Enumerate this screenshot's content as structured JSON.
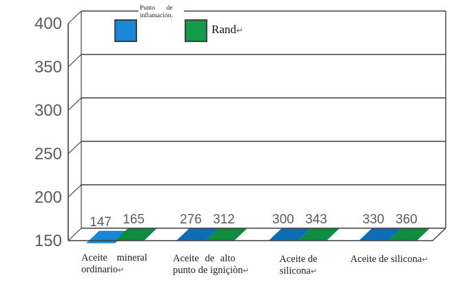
{
  "chart_data": {
    "type": "bar",
    "title": "",
    "xlabel": "",
    "ylabel": "",
    "ylim": [
      150,
      400
    ],
    "yticks": [
      150,
      200,
      250,
      300,
      350,
      400
    ],
    "grid": "horizontal",
    "legend_position": "top-center",
    "projection": "3d",
    "categories": [
      {
        "lines": [
          "Aceite mineral",
          "ordinario↵"
        ]
      },
      {
        "lines": [
          "Aceite de alto",
          "punto de igniçiòn↵"
        ]
      },
      {
        "lines": [
          "Aceite de",
          "silicona↵"
        ]
      },
      {
        "lines": [
          "Aceite de silicona↵"
        ]
      }
    ],
    "series": [
      {
        "name": "Punto de inflamación.",
        "values": [
          147,
          276,
          300,
          330
        ],
        "color": "#1a86d6",
        "top_color": "#0d6db6",
        "side_color": "#0a5a99"
      },
      {
        "name": "Rand",
        "values": [
          165,
          312,
          343,
          360
        ],
        "color": "#139c49",
        "top_color": "#0e8c3f",
        "side_color": "#0a6a33"
      }
    ]
  },
  "legend": {
    "series1_line1": "Punto de",
    "series1_line2": "inflamación.",
    "series2_label": "Rand",
    "return_mark": "↵"
  },
  "category_labels": {
    "c1_l1": "Aceite mineral",
    "c1_l2": "ordinario",
    "c2_l1": "Aceite de alto",
    "c2_l2": "punto de igniçiòn",
    "c3_l1": "Aceite de",
    "c3_l2": "silicona",
    "c4_l1": "Aceite de silicona",
    "return_mark": "↵"
  },
  "colors": {
    "grid_line": "#3f3f3f",
    "axis_text": "#5b5b5b",
    "value_text": "#5b5b5b",
    "background": "#ffffff"
  }
}
